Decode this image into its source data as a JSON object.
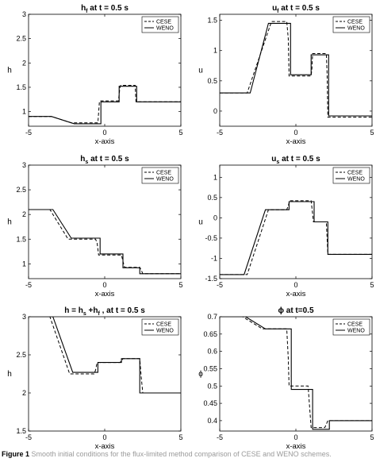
{
  "caption": {
    "label": "Figure 1",
    "text": "Smooth initial conditions for the flux-limited method comparison of CESE and WENO schemes."
  },
  "chart_data": [
    {
      "type": "line",
      "title": "h_f at t = 0.5 s",
      "title_main": "h",
      "title_sub": "f",
      "title_rest": " at t = 0.5 s",
      "xlabel": "x-axis",
      "ylabel": "h",
      "xlim": [
        -5,
        5
      ],
      "ylim": [
        0.7,
        3
      ],
      "xticks": [
        -5,
        0,
        5
      ],
      "yticks": [
        1,
        1.5,
        2,
        2.5,
        3
      ],
      "grid": false,
      "legend": "top-right",
      "series": [
        {
          "name": "CESE",
          "style": "dashed",
          "x": [
            -5,
            -3.5,
            -2.2,
            -0.45,
            -0.35,
            -0.3,
            0.9,
            1.0,
            1.05,
            2.0,
            2.05,
            5
          ],
          "y": [
            0.9,
            0.9,
            0.77,
            0.77,
            1.2,
            1.22,
            1.22,
            1.5,
            1.54,
            1.54,
            1.2,
            1.2
          ]
        },
        {
          "name": "WENO",
          "style": "solid",
          "x": [
            -5,
            -3.5,
            -2.0,
            -0.25,
            -0.25,
            0.95,
            0.95,
            2.1,
            2.1,
            5
          ],
          "y": [
            0.9,
            0.9,
            0.75,
            0.75,
            1.2,
            1.2,
            1.52,
            1.52,
            1.2,
            1.2
          ]
        }
      ]
    },
    {
      "type": "line",
      "title": "u_f at t = 0.5 s",
      "title_main": "u",
      "title_sub": "f",
      "title_rest": " at t = 0.5 s",
      "xlabel": "x-axis",
      "ylabel": "u",
      "xlim": [
        -5,
        5
      ],
      "ylim": [
        -0.25,
        1.6
      ],
      "xticks": [
        -5,
        0,
        5
      ],
      "yticks": [
        0,
        0.5,
        1,
        1.5
      ],
      "grid": false,
      "legend": "top-right",
      "series": [
        {
          "name": "CESE",
          "style": "dashed",
          "x": [
            -5,
            -3.2,
            -1.6,
            -0.6,
            -0.5,
            -0.45,
            1.0,
            1.05,
            1.1,
            2.0,
            2.05,
            2.1,
            5
          ],
          "y": [
            0.3,
            0.3,
            1.48,
            1.48,
            1.2,
            0.58,
            0.58,
            0.7,
            0.95,
            0.95,
            0.6,
            -0.1,
            -0.1
          ]
        },
        {
          "name": "WENO",
          "style": "solid",
          "x": [
            -5,
            -3.0,
            -1.8,
            -0.35,
            -0.35,
            1.0,
            1.0,
            2.15,
            2.15,
            5
          ],
          "y": [
            0.3,
            0.3,
            1.45,
            1.45,
            0.6,
            0.6,
            0.93,
            0.93,
            -0.08,
            -0.08
          ]
        }
      ]
    },
    {
      "type": "line",
      "title": "h_s at t = 0.5 s",
      "title_main": "h",
      "title_sub": "s",
      "title_rest": " at t = 0.5 s",
      "xlabel": "x-axis",
      "ylabel": "h",
      "xlim": [
        -5,
        5
      ],
      "ylim": [
        0.7,
        3
      ],
      "xticks": [
        -5,
        0,
        5
      ],
      "yticks": [
        1,
        1.5,
        2,
        2.5,
        3
      ],
      "grid": false,
      "legend": "top-right",
      "series": [
        {
          "name": "CESE",
          "style": "dashed",
          "x": [
            -5,
            -3.6,
            -2.4,
            -0.6,
            -0.5,
            -0.4,
            1.1,
            1.2,
            1.3,
            2.3,
            2.4,
            2.5,
            5
          ],
          "y": [
            2.1,
            2.1,
            1.5,
            1.5,
            1.42,
            1.18,
            1.18,
            1.05,
            0.93,
            0.93,
            0.87,
            0.8,
            0.8
          ]
        },
        {
          "name": "WENO",
          "style": "solid",
          "x": [
            -5,
            -3.4,
            -2.2,
            -0.3,
            -0.3,
            1.2,
            1.2,
            2.3,
            2.3,
            5
          ],
          "y": [
            2.1,
            2.1,
            1.52,
            1.52,
            1.2,
            1.2,
            0.92,
            0.92,
            0.8,
            0.8
          ]
        }
      ]
    },
    {
      "type": "line",
      "title": "u_s at t = 0.5 s",
      "title_main": "u",
      "title_sub": "s",
      "title_rest": " at t = 0.5 s",
      "xlabel": "x-axis",
      "ylabel": "u",
      "xlim": [
        -5,
        5
      ],
      "ylim": [
        -1.5,
        1.3
      ],
      "xticks": [
        -5,
        0,
        5
      ],
      "yticks": [
        -1.5,
        -1,
        -0.5,
        0,
        0.5,
        1
      ],
      "grid": false,
      "legend": "top-right",
      "series": [
        {
          "name": "CESE",
          "style": "dashed",
          "x": [
            -5,
            -3.2,
            -1.8,
            -0.6,
            -0.5,
            -0.4,
            1.0,
            1.1,
            1.15,
            2.0,
            2.1,
            5
          ],
          "y": [
            -1.4,
            -1.4,
            0.2,
            0.2,
            0.3,
            0.42,
            0.42,
            0.1,
            -0.1,
            -0.1,
            -0.9,
            -0.9
          ]
        },
        {
          "name": "WENO",
          "style": "solid",
          "x": [
            -5,
            -3.4,
            -2.0,
            -0.45,
            -0.45,
            1.2,
            1.2,
            2.1,
            2.1,
            5
          ],
          "y": [
            -1.4,
            -1.4,
            0.2,
            0.2,
            0.4,
            0.4,
            -0.1,
            -0.1,
            -0.9,
            -0.9
          ]
        }
      ]
    },
    {
      "type": "line",
      "title": "h = h_s + h_f , at t = 0.5 s",
      "title_main": "h = h",
      "title_sub": "s",
      "title_rest": " +h",
      "title_sub2": "f",
      "title_rest2": " , at t = 0.5 s",
      "xlabel": "x-axis",
      "ylabel": "h",
      "xlim": [
        -5,
        5
      ],
      "ylim": [
        1.5,
        3
      ],
      "xticks": [
        -5,
        0,
        5
      ],
      "yticks": [
        1.5,
        2,
        2.5,
        3
      ],
      "grid": false,
      "legend": "top-right",
      "series": [
        {
          "name": "CESE",
          "style": "dashed",
          "x": [
            -5,
            -3.6,
            -2.3,
            -0.7,
            -0.6,
            -0.5,
            1.0,
            1.1,
            1.2,
            2.3,
            2.4,
            2.5,
            5
          ],
          "y": [
            3.0,
            3.0,
            2.25,
            2.25,
            2.3,
            2.4,
            2.4,
            2.42,
            2.45,
            2.45,
            2.2,
            2.0,
            2.0
          ]
        },
        {
          "name": "WENO",
          "style": "solid",
          "x": [
            -5,
            -3.4,
            -2.1,
            -0.45,
            -0.45,
            1.1,
            1.1,
            2.3,
            2.3,
            5
          ],
          "y": [
            3.0,
            3.0,
            2.27,
            2.27,
            2.4,
            2.4,
            2.45,
            2.45,
            2.0,
            2.0
          ]
        }
      ]
    },
    {
      "type": "line",
      "title": "ϕ at t=0.5",
      "title_main": "ϕ at t=0.5",
      "xlabel": "x-axis",
      "ylabel": "ϕ",
      "xlim": [
        -5,
        5
      ],
      "ylim": [
        0.37,
        0.7
      ],
      "xticks": [
        -5,
        0,
        5
      ],
      "yticks": [
        0.4,
        0.45,
        0.5,
        0.55,
        0.6,
        0.65,
        0.7
      ],
      "grid": false,
      "legend": "top-right",
      "series": [
        {
          "name": "CESE",
          "style": "dashed",
          "x": [
            -5,
            -3.5,
            -2.2,
            -0.6,
            -0.5,
            -0.45,
            0.8,
            0.9,
            1.0,
            1.9,
            2.0,
            2.1,
            5
          ],
          "y": [
            0.7,
            0.7,
            0.665,
            0.665,
            0.58,
            0.5,
            0.5,
            0.44,
            0.38,
            0.38,
            0.39,
            0.4,
            0.4
          ]
        },
        {
          "name": "WENO",
          "style": "solid",
          "x": [
            -5,
            -3.3,
            -2.0,
            -0.3,
            -0.3,
            1.1,
            1.1,
            2.2,
            2.2,
            5
          ],
          "y": [
            0.7,
            0.7,
            0.665,
            0.665,
            0.49,
            0.49,
            0.375,
            0.375,
            0.4,
            0.4
          ]
        }
      ]
    }
  ]
}
